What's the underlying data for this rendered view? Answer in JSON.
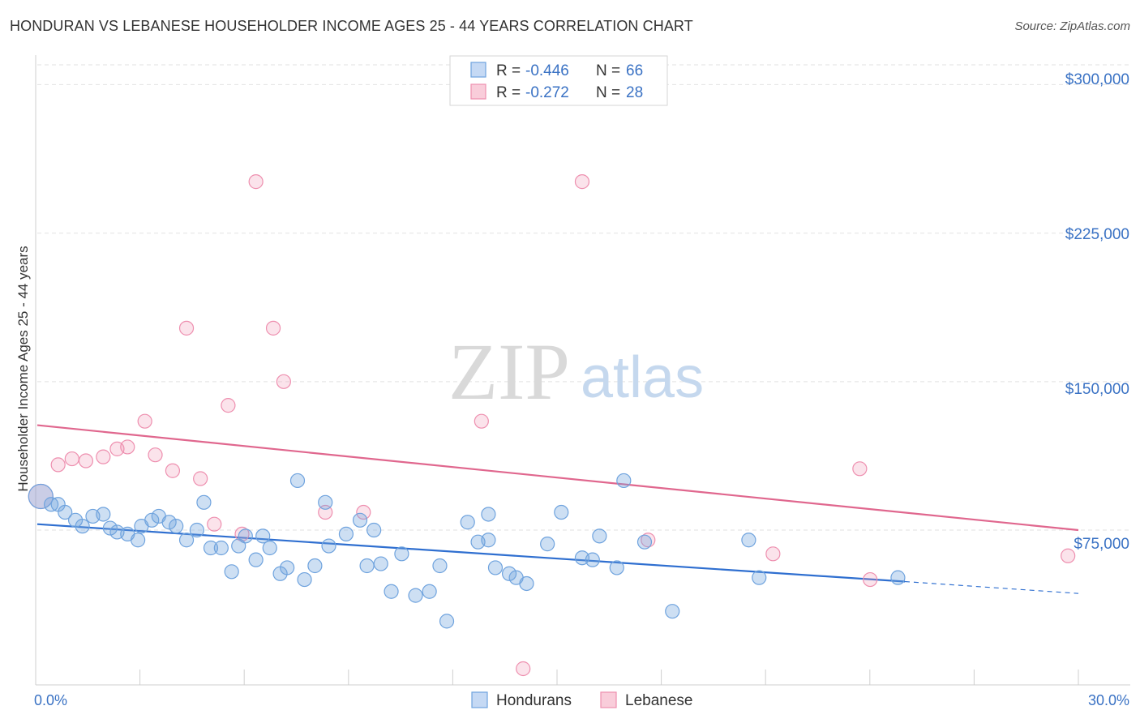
{
  "title": "HONDURAN VS LEBANESE HOUSEHOLDER INCOME AGES 25 - 44 YEARS CORRELATION CHART",
  "source": "Source: ZipAtlas.com",
  "watermark": {
    "zip": "ZIP",
    "atlas": "atlas"
  },
  "stats": [
    {
      "r_label": "R =",
      "r_value": "-0.446",
      "n_label": "N =",
      "n_value": "66"
    },
    {
      "r_label": "R =",
      "r_value": "-0.272",
      "n_label": "N =",
      "n_value": "28"
    }
  ],
  "chart_data": {
    "type": "scatter",
    "xlabel": "",
    "ylabel": "Householder Income Ages 25 - 44 years",
    "xlim": [
      0,
      30
    ],
    "ylim": [
      5000,
      310000
    ],
    "x_tick_labels": [
      "0.0%",
      "30.0%"
    ],
    "y_ticks": [
      75000,
      150000,
      225000,
      300000
    ],
    "y_tick_labels": [
      "$75,000",
      "$150,000",
      "$225,000",
      "$300,000"
    ],
    "grid": true,
    "legend_position": "bottom-center",
    "colors": {
      "hondurans": "#6fa3de",
      "lebanese": "#ee8faf",
      "hondurans_line": "#2f6fd0",
      "lebanese_line": "#e0678e"
    },
    "series": [
      {
        "name": "Hondurans",
        "points": [
          [
            0.1,
            92000
          ],
          [
            0.4,
            88000
          ],
          [
            0.6,
            88000
          ],
          [
            0.8,
            84000
          ],
          [
            1.1,
            80000
          ],
          [
            1.3,
            77000
          ],
          [
            1.6,
            82000
          ],
          [
            1.9,
            83000
          ],
          [
            2.1,
            76000
          ],
          [
            2.3,
            74000
          ],
          [
            2.6,
            73000
          ],
          [
            2.9,
            70000
          ],
          [
            3.0,
            77000
          ],
          [
            3.3,
            80000
          ],
          [
            3.5,
            82000
          ],
          [
            3.8,
            79000
          ],
          [
            4.0,
            77000
          ],
          [
            4.3,
            70000
          ],
          [
            4.6,
            75000
          ],
          [
            4.8,
            89000
          ],
          [
            5.0,
            66000
          ],
          [
            5.3,
            66000
          ],
          [
            5.6,
            54000
          ],
          [
            5.8,
            67000
          ],
          [
            6.0,
            72000
          ],
          [
            6.3,
            60000
          ],
          [
            6.5,
            72000
          ],
          [
            6.7,
            66000
          ],
          [
            7.0,
            53000
          ],
          [
            7.2,
            56000
          ],
          [
            7.5,
            100000
          ],
          [
            7.7,
            50000
          ],
          [
            8.0,
            57000
          ],
          [
            8.3,
            89000
          ],
          [
            8.4,
            67000
          ],
          [
            8.9,
            73000
          ],
          [
            9.3,
            80000
          ],
          [
            9.5,
            57000
          ],
          [
            9.7,
            75000
          ],
          [
            9.9,
            58000
          ],
          [
            10.2,
            44000
          ],
          [
            10.5,
            63000
          ],
          [
            10.9,
            42000
          ],
          [
            11.3,
            44000
          ],
          [
            11.6,
            57000
          ],
          [
            11.8,
            29000
          ],
          [
            12.4,
            79000
          ],
          [
            12.7,
            69000
          ],
          [
            13.0,
            83000
          ],
          [
            13.0,
            70000
          ],
          [
            13.2,
            56000
          ],
          [
            13.6,
            53000
          ],
          [
            13.8,
            51000
          ],
          [
            14.1,
            48000
          ],
          [
            14.7,
            68000
          ],
          [
            15.1,
            84000
          ],
          [
            15.7,
            61000
          ],
          [
            16.0,
            60000
          ],
          [
            16.2,
            72000
          ],
          [
            16.7,
            56000
          ],
          [
            16.9,
            100000
          ],
          [
            17.5,
            69000
          ],
          [
            18.3,
            34000
          ],
          [
            20.5,
            70000
          ],
          [
            20.8,
            51000
          ],
          [
            24.8,
            51000
          ]
        ]
      },
      {
        "name": "Lebanese",
        "points": [
          [
            0.1,
            92000
          ],
          [
            0.6,
            108000
          ],
          [
            1.0,
            111000
          ],
          [
            1.4,
            110000
          ],
          [
            1.9,
            112000
          ],
          [
            2.3,
            116000
          ],
          [
            2.6,
            117000
          ],
          [
            3.1,
            130000
          ],
          [
            3.4,
            113000
          ],
          [
            3.9,
            105000
          ],
          [
            4.3,
            177000
          ],
          [
            4.7,
            101000
          ],
          [
            5.1,
            78000
          ],
          [
            5.5,
            138000
          ],
          [
            5.9,
            73000
          ],
          [
            6.3,
            251000
          ],
          [
            6.8,
            177000
          ],
          [
            7.1,
            150000
          ],
          [
            8.3,
            84000
          ],
          [
            9.4,
            84000
          ],
          [
            12.8,
            130000
          ],
          [
            14.0,
            5000
          ],
          [
            15.7,
            251000
          ],
          [
            17.6,
            70000
          ],
          [
            21.2,
            63000
          ],
          [
            23.7,
            106000
          ],
          [
            24.0,
            50000
          ],
          [
            29.7,
            62000
          ]
        ]
      }
    ],
    "trend_lines": [
      {
        "name": "Hondurans",
        "solid": [
          [
            0,
            78000
          ],
          [
            25.0,
            49000
          ]
        ],
        "dashed": [
          [
            25.0,
            49000
          ],
          [
            30,
            43000
          ]
        ]
      },
      {
        "name": "Lebanese",
        "solid": [
          [
            0,
            128000
          ],
          [
            30,
            75000
          ]
        ]
      }
    ]
  }
}
